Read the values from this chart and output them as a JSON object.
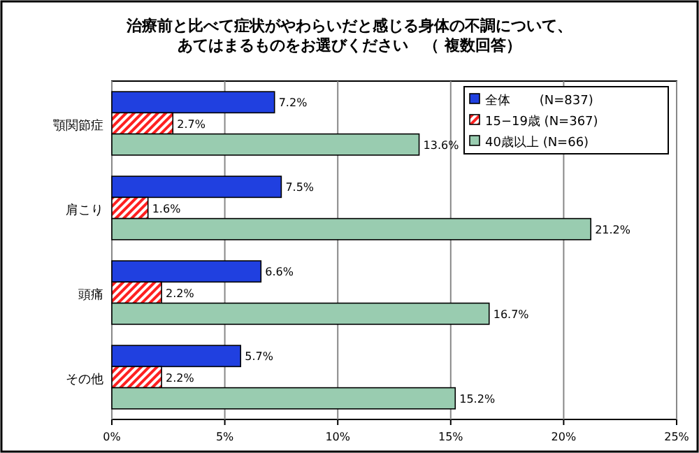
{
  "chart_data": {
    "type": "bar",
    "orientation": "horizontal",
    "title": "治療前と比べて症状がやわらいだと感じる身体の不調について、あてはまるものをお選びください　（ 複数回答）",
    "categories": [
      "顎関節症",
      "肩こり",
      "頭痛",
      "その他"
    ],
    "series": [
      {
        "name": "全体　　 (N=837)",
        "color": "#2040e0",
        "values": [
          7.2,
          7.5,
          6.6,
          5.7
        ],
        "value_labels": [
          "7.2%",
          "7.5%",
          "6.6%",
          "5.7%"
        ]
      },
      {
        "name": "15−19歳 (N=367)",
        "color": "#ff2020",
        "values": [
          2.7,
          1.6,
          2.2,
          2.2
        ],
        "value_labels": [
          "2.7%",
          "1.6%",
          "2.2%",
          "2.2%"
        ]
      },
      {
        "name": "40歳以上 (N=66)",
        "color": "#99ccb0",
        "values": [
          13.6,
          21.2,
          16.7,
          15.2
        ],
        "value_labels": [
          "13.6%",
          "21.2%",
          "16.7%",
          "15.2%"
        ]
      }
    ],
    "xlim": [
      0,
      25
    ],
    "xticks": [
      {
        "value": 0,
        "label": "0%"
      },
      {
        "value": 5,
        "label": "5%"
      },
      {
        "value": 10,
        "label": "10%"
      },
      {
        "value": 15,
        "label": "15%"
      },
      {
        "value": 20,
        "label": "20%"
      },
      {
        "value": 25,
        "label": "25%"
      }
    ],
    "grid": "x",
    "legend": "top right"
  }
}
